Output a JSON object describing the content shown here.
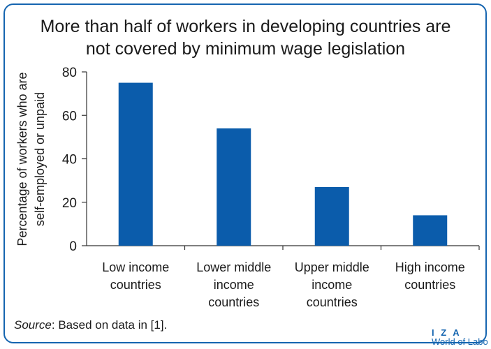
{
  "chart_data": {
    "type": "bar",
    "title_lines": [
      "More than half of workers in developing countries are",
      "not covered by minimum wage legislation"
    ],
    "ylabel_lines": [
      "Percentage of workers who are",
      "self-employed or unpaid"
    ],
    "xlabel": "",
    "categories": [
      [
        "Low income",
        "countries"
      ],
      [
        "Lower middle",
        "income",
        "countries"
      ],
      [
        "Upper middle",
        "income",
        "countries"
      ],
      [
        "High income",
        "countries"
      ]
    ],
    "values": [
      75,
      54,
      27,
      14
    ],
    "ylim": [
      0,
      80
    ],
    "yticks": [
      "0",
      "20",
      "40",
      "60",
      "80"
    ],
    "bar_color": "#0b5cab",
    "grid": false
  },
  "source": {
    "prefix": "Source",
    "text": ": Based on data in [1]."
  },
  "logo": {
    "line1": "I Z A",
    "line2": "World of Labor"
  },
  "frame_color": "#1565b0"
}
